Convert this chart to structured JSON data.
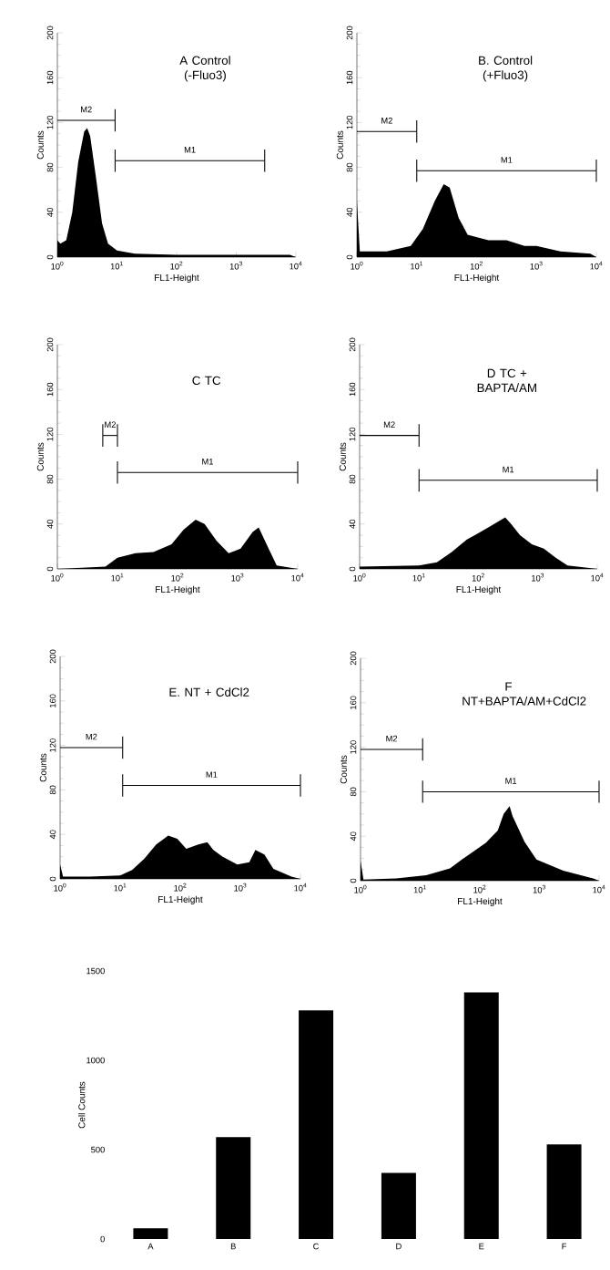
{
  "chart_data": [
    {
      "type": "area",
      "title": "A  Control (-Fluo3)",
      "xlabel": "FL1-Height",
      "ylabel": "Counts",
      "log": "x",
      "xlim": [
        1,
        10000
      ],
      "ylim": [
        0,
        200
      ],
      "yticks": [
        0,
        40,
        80,
        120,
        160,
        200
      ],
      "xticks": [
        {
          "value": 1,
          "label": "10$^{0}$"
        },
        {
          "value": 10,
          "label": "10$^{1}$"
        },
        {
          "value": 100,
          "label": "10$^{2}$"
        },
        {
          "value": 1000,
          "label": "10$^{3}$"
        },
        {
          "value": 10000,
          "label": "10$^{4}$"
        }
      ],
      "series": [
        {
          "color": "#000000",
          "x": [
            1,
            1.12,
            1.41,
            1.78,
            2.24,
            2.82,
            3.16,
            3.55,
            4.47,
            5.62,
            7.08,
            10,
            20,
            100,
            1000,
            7940,
            10000
          ],
          "values": [
            15,
            12,
            15,
            40,
            85,
            112,
            115,
            108,
            70,
            30,
            12,
            6,
            3,
            2,
            2,
            2,
            0
          ]
        },
        {
          "type": "line",
          "name": "M2",
          "color": "#000000",
          "x": [
            1,
            9.3
          ],
          "values": [
            122,
            122
          ],
          "errors": [
            null,
            10
          ]
        },
        {
          "type": "line",
          "name": "M1",
          "color": "#000000",
          "x": [
            9.3,
            3000
          ],
          "values": [
            86,
            86
          ],
          "errors": [
            10,
            10
          ]
        }
      ]
    },
    {
      "type": "area",
      "title": "B. Control (+Fluo3)",
      "xlabel": "FL1-Height",
      "ylabel": "Counts",
      "log": "x",
      "xlim": [
        1,
        10000
      ],
      "ylim": [
        0,
        200
      ],
      "yticks": [
        0,
        40,
        80,
        120,
        160,
        200
      ],
      "xticks": [
        {
          "value": 1,
          "label": "10$^{0}$"
        },
        {
          "value": 10,
          "label": "10$^{1}$"
        },
        {
          "value": 100,
          "label": "10$^{2}$"
        },
        {
          "value": 1000,
          "label": "10$^{3}$"
        },
        {
          "value": 10000,
          "label": "10$^{4}$"
        }
      ],
      "series": [
        {
          "color": "#000000",
          "x": [
            1,
            1.12,
            3.16,
            7.94,
            12.6,
            20,
            28.2,
            35.5,
            50.1,
            70.8,
            158,
            316,
            631,
            1000,
            2510,
            7940,
            10000
          ],
          "values": [
            50,
            5,
            5,
            10,
            25,
            50,
            65,
            62,
            35,
            20,
            15,
            15,
            10,
            10,
            5,
            3,
            0
          ]
        },
        {
          "type": "line",
          "name": "M2",
          "color": "#000000",
          "x": [
            1,
            10
          ],
          "values": [
            112,
            112
          ],
          "errors": [
            null,
            10
          ]
        },
        {
          "type": "line",
          "name": "M1",
          "color": "#000000",
          "x": [
            10,
            10000
          ],
          "values": [
            77,
            77
          ],
          "errors": [
            10,
            10
          ]
        }
      ]
    },
    {
      "type": "area",
      "title": "C  TC",
      "xlabel": "FL1-Height",
      "ylabel": "Counts",
      "log": "x",
      "xlim": [
        1,
        10000
      ],
      "ylim": [
        0,
        200
      ],
      "yticks": [
        0,
        40,
        80,
        120,
        160,
        200
      ],
      "xticks": [
        {
          "value": 1,
          "label": "10$^{0}$"
        },
        {
          "value": 10,
          "label": "10$^{1}$"
        },
        {
          "value": 100,
          "label": "10$^{2}$"
        },
        {
          "value": 1000,
          "label": "10$^{3}$"
        },
        {
          "value": 10000,
          "label": "10$^{4}$"
        }
      ],
      "series": [
        {
          "color": "#000000",
          "x": [
            1,
            6.31,
            10,
            20,
            39.8,
            79.4,
            126,
            200,
            282,
            447,
            708,
            1120,
            1780,
            2240,
            3160,
            4470,
            10000
          ],
          "values": [
            0,
            2,
            10,
            14,
            15,
            22,
            35,
            44,
            40,
            25,
            14,
            18,
            33,
            37,
            20,
            3,
            0
          ]
        },
        {
          "type": "line",
          "name": "M2",
          "color": "#000000",
          "x": [
            5.7,
            10
          ],
          "values": [
            119,
            119
          ],
          "errors": [
            10,
            10
          ]
        },
        {
          "type": "line",
          "name": "M1",
          "color": "#000000",
          "x": [
            10,
            10000
          ],
          "values": [
            86,
            86
          ],
          "errors": [
            10,
            10
          ]
        }
      ]
    },
    {
      "type": "area",
      "title": "D  TC + BAPTA/AM",
      "xlabel": "FL1-Height",
      "ylabel": "Counts",
      "log": "x",
      "xlim": [
        1,
        10000
      ],
      "ylim": [
        0,
        200
      ],
      "yticks": [
        0,
        40,
        80,
        120,
        160,
        200
      ],
      "xticks": [
        {
          "value": 1,
          "label": "10$^{0}$"
        },
        {
          "value": 10,
          "label": "10$^{1}$"
        },
        {
          "value": 100,
          "label": "10$^{2}$"
        },
        {
          "value": 1000,
          "label": "10$^{3}$"
        },
        {
          "value": 10000,
          "label": "10$^{4}$"
        }
      ],
      "series": [
        {
          "color": "#000000",
          "x": [
            1,
            10,
            20,
            35.5,
            63.1,
            100,
            158,
            282,
            355,
            501,
            794,
            1260,
            2000,
            3160,
            10000
          ],
          "values": [
            2,
            3,
            6,
            15,
            26,
            32,
            38,
            46,
            40,
            30,
            22,
            18,
            10,
            3,
            0
          ]
        },
        {
          "type": "line",
          "name": "M2",
          "color": "#000000",
          "x": [
            1,
            10
          ],
          "values": [
            119,
            119
          ],
          "errors": [
            null,
            10
          ]
        },
        {
          "type": "line",
          "name": "M1",
          "color": "#000000",
          "x": [
            10,
            10000
          ],
          "values": [
            79,
            79
          ],
          "errors": [
            10,
            10
          ]
        }
      ]
    },
    {
      "type": "area",
      "title": "E. NT + CdCl2",
      "xlabel": "FL1-Height",
      "ylabel": "Counts",
      "log": "x",
      "xlim": [
        1,
        10000
      ],
      "ylim": [
        0,
        200
      ],
      "yticks": [
        0,
        40,
        80,
        120,
        160,
        200
      ],
      "xticks": [
        {
          "value": 1,
          "label": "10$^{0}$"
        },
        {
          "value": 10,
          "label": "10$^{1}$"
        },
        {
          "value": 100,
          "label": "10$^{2}$"
        },
        {
          "value": 1000,
          "label": "10$^{3}$"
        },
        {
          "value": 10000,
          "label": "10$^{4}$"
        }
      ],
      "series": [
        {
          "color": "#000000",
          "x": [
            1,
            1.12,
            3.16,
            10,
            15.8,
            25.1,
            39.8,
            63.1,
            89.1,
            126,
            200,
            282,
            355,
            501,
            891,
            1410,
            1780,
            2510,
            3550,
            7080,
            10000
          ],
          "values": [
            13,
            2,
            2,
            3,
            8,
            18,
            31,
            39,
            36,
            27,
            31,
            33,
            26,
            20,
            13,
            15,
            26,
            22,
            9,
            2,
            0
          ]
        },
        {
          "type": "line",
          "name": "M2",
          "color": "#000000",
          "x": [
            1,
            11
          ],
          "values": [
            118,
            118
          ],
          "errors": [
            null,
            10
          ]
        },
        {
          "type": "line",
          "name": "M1",
          "color": "#000000",
          "x": [
            11,
            10000
          ],
          "values": [
            84,
            84
          ],
          "errors": [
            10,
            10
          ]
        }
      ]
    },
    {
      "type": "area",
      "title": "F  NT+BAPTA/AM+CdCl2",
      "xlabel": "FL1-Height",
      "ylabel": "Counts",
      "log": "x",
      "xlim": [
        1,
        10000
      ],
      "ylim": [
        0,
        200
      ],
      "yticks": [
        0,
        40,
        80,
        120,
        160,
        200
      ],
      "xticks": [
        {
          "value": 1,
          "label": "10$^{0}$"
        },
        {
          "value": 10,
          "label": "10$^{1}$"
        },
        {
          "value": 100,
          "label": "10$^{2}$"
        },
        {
          "value": 1000,
          "label": "10$^{3}$"
        },
        {
          "value": 10000,
          "label": "10$^{4}$"
        }
      ],
      "series": [
        {
          "color": "#000000",
          "x": [
            1,
            1.12,
            3.98,
            12.6,
            31.6,
            56.2,
            126,
            200,
            251,
            316,
            355,
            562,
            891,
            2510,
            7940,
            10000
          ],
          "values": [
            18,
            1,
            2,
            5,
            11,
            21,
            34,
            45,
            60,
            67,
            58,
            35,
            19,
            9,
            2,
            0
          ]
        },
        {
          "type": "line",
          "name": "M2",
          "color": "#000000",
          "x": [
            1,
            11
          ],
          "values": [
            118,
            118
          ],
          "errors": [
            null,
            10
          ]
        },
        {
          "type": "line",
          "name": "M1",
          "color": "#000000",
          "x": [
            11,
            10000
          ],
          "values": [
            80,
            80
          ],
          "errors": [
            10,
            10
          ]
        }
      ]
    },
    {
      "type": "bar",
      "ylabel": "Cell Counts",
      "color": "#000000",
      "categories": [
        "A",
        "B",
        "C",
        "D",
        "E",
        "F"
      ],
      "values": [
        60,
        570,
        1280,
        370,
        1380,
        530
      ],
      "ylim": [
        0,
        1500
      ],
      "yticks": [
        0,
        500,
        1000,
        1500
      ]
    }
  ]
}
